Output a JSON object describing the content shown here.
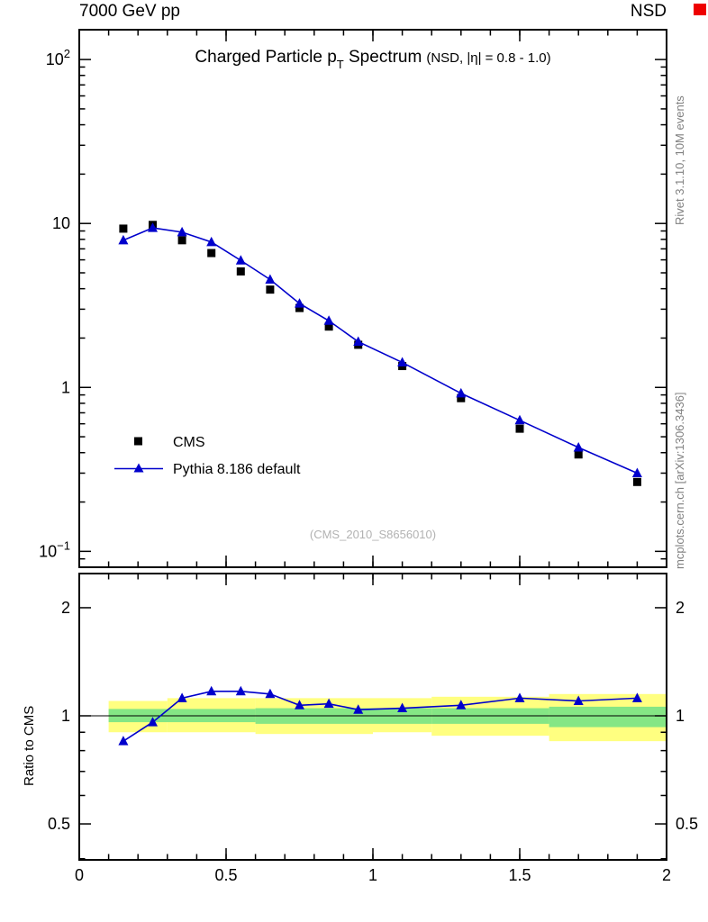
{
  "header": {
    "left": "7000 GeV pp",
    "right": "NSD"
  },
  "titles": {
    "main": "Charged Particle p",
    "sub": "T",
    "rest": " Spectrum",
    "cond": "(NSD, |η| = 0.8 - 1.0)"
  },
  "watermark": "(CMS_2010_S8656010)",
  "side_notes": {
    "top_right": "Rivet 3.1.10, 10M events",
    "bottom_right": "mcplots.cern.ch [arXiv:1306.3436]"
  },
  "ratio_ylabel": "Ratio to CMS",
  "legend": [
    {
      "label": "CMS",
      "marker": "square",
      "color": "#000000"
    },
    {
      "label": "Pythia 8.186 default",
      "marker": "triangle",
      "color": "#0000cc"
    }
  ],
  "colors": {
    "accent_blue": "#0000cc",
    "band_yellow": "#ffff80",
    "band_green": "#85e685",
    "corner_red": "#ee0000",
    "gray_text": "#808080"
  },
  "chart_data": [
    {
      "type": "line",
      "title": "Charged Particle pT Spectrum (NSD, |η| = 0.8 - 1.0)",
      "xlim": [
        0,
        2
      ],
      "ylim_log": [
        0.08,
        152
      ],
      "x_minor_step": 0.1,
      "x_ticks": [
        {
          "v": 0,
          "label": "0"
        },
        {
          "v": 0.5,
          "label": "0.5"
        },
        {
          "v": 1,
          "label": "1"
        },
        {
          "v": 1.5,
          "label": "1.5"
        },
        {
          "v": 2,
          "label": "2"
        }
      ],
      "y_ticks": [
        {
          "v": 100,
          "base": "10",
          "exp": "2"
        },
        {
          "v": 10,
          "base": "10",
          "exp": ""
        },
        {
          "v": 1,
          "base": "1",
          "exp": ""
        },
        {
          "v": 0.1,
          "base": "10",
          "exp": "−1"
        }
      ],
      "series": [
        {
          "name": "CMS",
          "marker": "square",
          "color": "#000000",
          "line": false,
          "x": [
            0.15,
            0.25,
            0.35,
            0.45,
            0.55,
            0.65,
            0.75,
            0.85,
            0.95,
            1.1,
            1.3,
            1.5,
            1.7,
            1.9
          ],
          "y": [
            9.3,
            9.8,
            7.9,
            6.6,
            5.1,
            3.95,
            3.05,
            2.35,
            1.82,
            1.35,
            0.86,
            0.56,
            0.39,
            0.265
          ]
        },
        {
          "name": "Pythia 8.186 default",
          "marker": "triangle",
          "color": "#0000cc",
          "line": true,
          "x": [
            0.15,
            0.25,
            0.35,
            0.45,
            0.55,
            0.65,
            0.75,
            0.85,
            0.95,
            1.1,
            1.3,
            1.5,
            1.7,
            1.9
          ],
          "y": [
            7.9,
            9.4,
            8.85,
            7.7,
            5.95,
            4.55,
            3.25,
            2.55,
            1.9,
            1.42,
            0.92,
            0.63,
            0.43,
            0.3
          ]
        }
      ]
    },
    {
      "type": "ratio",
      "ylabel": "Ratio to CMS",
      "xlim": [
        0,
        2
      ],
      "ylim_log": [
        0.397,
        2.49
      ],
      "y_ticks": [
        {
          "v": 2,
          "label": "2"
        },
        {
          "v": 1,
          "label": "1"
        },
        {
          "v": 0.5,
          "label": "0.5"
        }
      ],
      "reference_line": 1,
      "bands": [
        {
          "color": "#ffff80",
          "segments": [
            {
              "x0": 0.1,
              "x1": 0.3,
              "lo": 0.9,
              "hi": 1.1
            },
            {
              "x0": 0.3,
              "x1": 0.6,
              "lo": 0.9,
              "hi": 1.12
            },
            {
              "x0": 0.6,
              "x1": 1.0,
              "lo": 0.89,
              "hi": 1.12
            },
            {
              "x0": 1.0,
              "x1": 1.2,
              "lo": 0.9,
              "hi": 1.12
            },
            {
              "x0": 1.2,
              "x1": 1.6,
              "lo": 0.88,
              "hi": 1.13
            },
            {
              "x0": 1.6,
              "x1": 2.0,
              "lo": 0.85,
              "hi": 1.15
            }
          ]
        },
        {
          "color": "#85e685",
          "segments": [
            {
              "x0": 0.1,
              "x1": 0.6,
              "lo": 0.96,
              "hi": 1.045
            },
            {
              "x0": 0.6,
              "x1": 1.2,
              "lo": 0.95,
              "hi": 1.05
            },
            {
              "x0": 1.2,
              "x1": 1.6,
              "lo": 0.95,
              "hi": 1.05
            },
            {
              "x0": 1.6,
              "x1": 2.0,
              "lo": 0.93,
              "hi": 1.06
            }
          ]
        }
      ],
      "series": [
        {
          "name": "Pythia 8.186 default / CMS",
          "marker": "triangle",
          "color": "#0000cc",
          "line": true,
          "x": [
            0.15,
            0.25,
            0.35,
            0.45,
            0.55,
            0.65,
            0.75,
            0.85,
            0.95,
            1.1,
            1.3,
            1.5,
            1.7,
            1.9
          ],
          "y": [
            0.85,
            0.96,
            1.12,
            1.17,
            1.17,
            1.15,
            1.07,
            1.08,
            1.04,
            1.05,
            1.07,
            1.12,
            1.1,
            1.12
          ]
        }
      ]
    }
  ]
}
